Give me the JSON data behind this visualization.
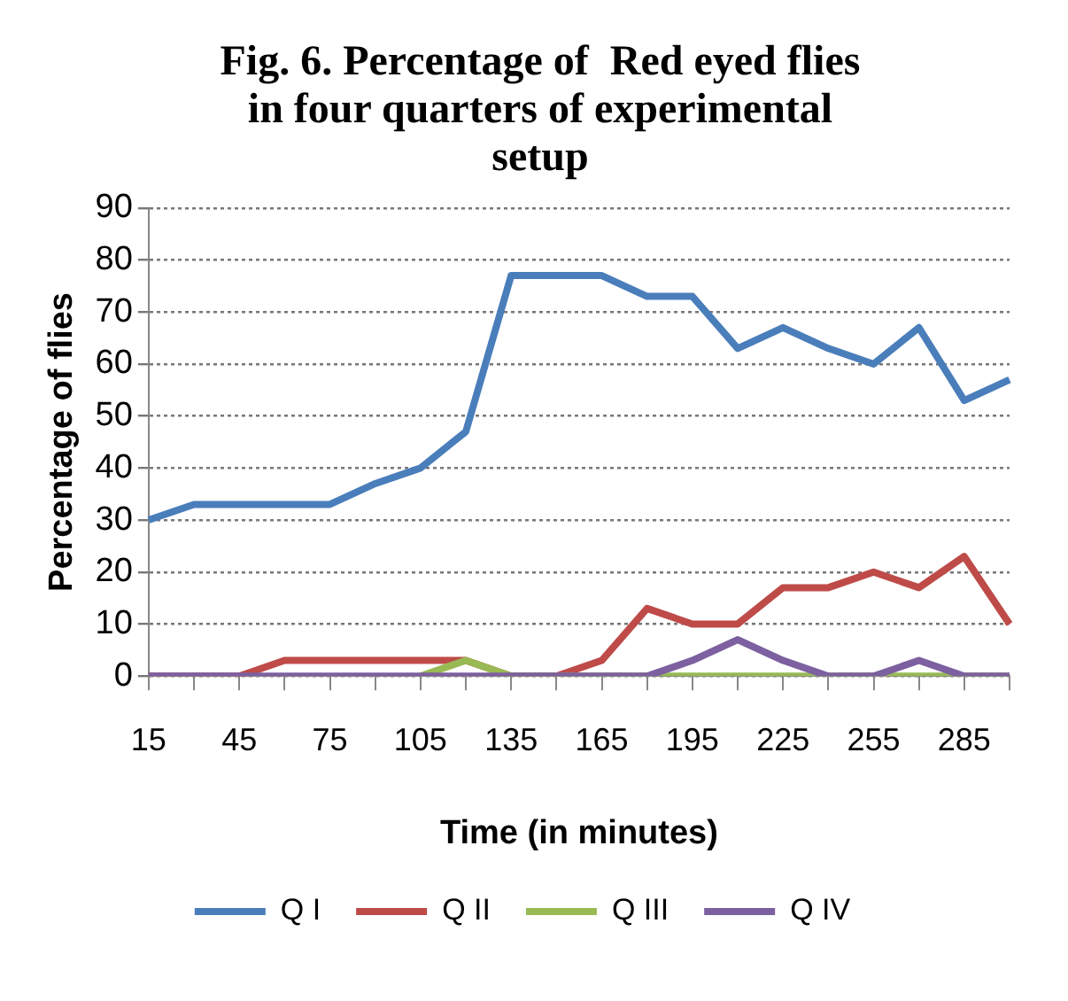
{
  "chart_data": {
    "type": "line",
    "title": "Fig. 6. Percentage of  Red eyed flies in four quarters of experimental setup",
    "xlabel": "Time (in minutes)",
    "ylabel": "Percentage of flies",
    "categories": [
      "15",
      null,
      "45",
      null,
      "75",
      null,
      "105",
      null,
      "135",
      null,
      "165",
      null,
      "195",
      null,
      "225",
      null,
      "255",
      null,
      "285",
      null
    ],
    "series": [
      {
        "name": "Q I",
        "color": "#4a7ebb",
        "values": [
          30,
          33,
          33,
          33,
          33,
          37,
          40,
          47,
          77,
          77,
          77,
          73,
          73,
          63,
          67,
          63,
          60,
          67,
          53,
          57
        ]
      },
      {
        "name": "Q II",
        "color": "#be4b48",
        "values": [
          0,
          0,
          0,
          3,
          3,
          3,
          3,
          3,
          0,
          0,
          3,
          13,
          10,
          10,
          17,
          17,
          20,
          17,
          23,
          10
        ]
      },
      {
        "name": "Q III",
        "color": "#98b954",
        "values": [
          null,
          null,
          null,
          null,
          null,
          null,
          0,
          3,
          0,
          0,
          0,
          0,
          0,
          0,
          0,
          0,
          0,
          0,
          0,
          0
        ]
      },
      {
        "name": "Q IV",
        "color": "#7d60a0",
        "values": [
          0,
          0,
          0,
          0,
          0,
          0,
          0,
          0,
          0,
          0,
          0,
          0,
          3,
          7,
          3,
          0,
          0,
          3,
          0,
          0
        ]
      }
    ],
    "ylim": [
      0,
      90
    ],
    "yticks": [
      0,
      10,
      20,
      30,
      40,
      50,
      60,
      70,
      80,
      90
    ],
    "grid": "y",
    "legend": "bottom",
    "marker": "none",
    "line_style": "solid"
  }
}
